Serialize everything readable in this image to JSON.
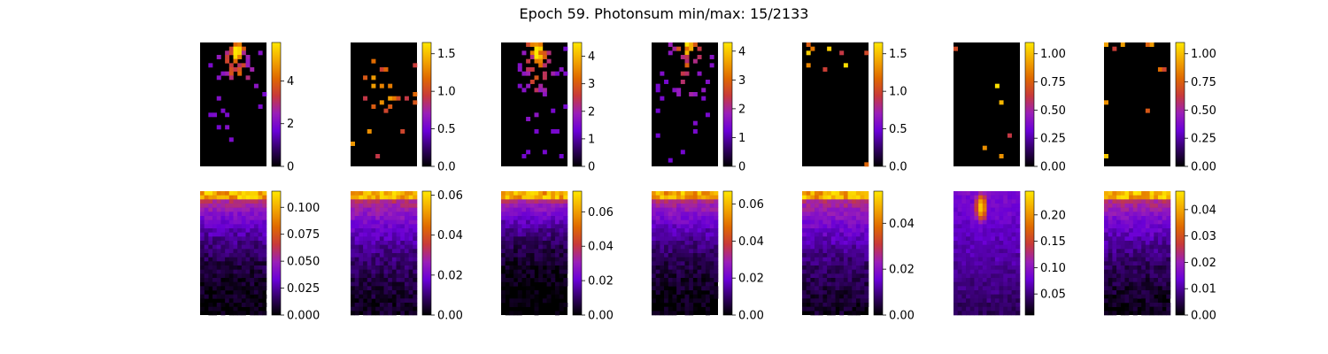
{
  "figure": {
    "title": "Epoch 59. Photonsum min/max: 15/2133"
  },
  "colormap": {
    "name": "gnuplot",
    "stops": [
      "#000000",
      "#330066",
      "#6a00d6",
      "#9a1fb8",
      "#c83a3a",
      "#e06a00",
      "#f3a800",
      "#ffe800"
    ]
  },
  "chart_data": [
    {
      "type": "heatmap",
      "row": "top",
      "col": 1,
      "grid": [
        16,
        30
      ],
      "ylim": [
        0,
        5.8
      ],
      "ticks": [
        "0",
        "2",
        "4"
      ],
      "tick_values": [
        0,
        2,
        4
      ],
      "hotspot": {
        "x": 0.55,
        "y": 0.06,
        "value": 5.8
      },
      "pattern": "photon-hits-spread"
    },
    {
      "type": "heatmap",
      "row": "top",
      "col": 2,
      "grid": [
        16,
        30
      ],
      "ylim": [
        0,
        1.65
      ],
      "ticks": [
        "0.0",
        "0.5",
        "1.0",
        "1.5"
      ],
      "tick_values": [
        0,
        0.5,
        1.0,
        1.5
      ],
      "pattern": "sparse-hits"
    },
    {
      "type": "heatmap",
      "row": "top",
      "col": 3,
      "grid": [
        16,
        30
      ],
      "ylim": [
        0,
        4.5
      ],
      "ticks": [
        "0",
        "1",
        "2",
        "3",
        "4"
      ],
      "tick_values": [
        0,
        1,
        2,
        3,
        4
      ],
      "hotspot": {
        "x": 0.55,
        "y": 0.08,
        "value": 4.5
      },
      "pattern": "photon-hits-spread"
    },
    {
      "type": "heatmap",
      "row": "top",
      "col": 4,
      "grid": [
        16,
        30
      ],
      "ylim": [
        0,
        4.3
      ],
      "ticks": [
        "0",
        "1",
        "2",
        "3",
        "4"
      ],
      "tick_values": [
        0,
        1,
        2,
        3,
        4
      ],
      "hotspot": {
        "x": 0.55,
        "y": 0.0,
        "value": 4.3
      },
      "pattern": "photon-hits-spread"
    },
    {
      "type": "heatmap",
      "row": "top",
      "col": 5,
      "grid": [
        16,
        30
      ],
      "ylim": [
        0,
        1.65
      ],
      "ticks": [
        "0.0",
        "0.5",
        "1.0",
        "1.5"
      ],
      "tick_values": [
        0,
        0.5,
        1.0,
        1.5
      ],
      "pattern": "sparse-top"
    },
    {
      "type": "heatmap",
      "row": "top",
      "col": 6,
      "grid": [
        16,
        30
      ],
      "ylim": [
        0,
        1.1
      ],
      "ticks": [
        "0.00",
        "0.25",
        "0.50",
        "0.75",
        "1.00"
      ],
      "tick_values": [
        0,
        0.25,
        0.5,
        0.75,
        1.0
      ],
      "pattern": "very-sparse"
    },
    {
      "type": "heatmap",
      "row": "top",
      "col": 7,
      "grid": [
        16,
        30
      ],
      "ylim": [
        0,
        1.1
      ],
      "ticks": [
        "0.00",
        "0.25",
        "0.50",
        "0.75",
        "1.00"
      ],
      "tick_values": [
        0,
        0.25,
        0.5,
        0.75,
        1.0
      ],
      "pattern": "sparse-top"
    },
    {
      "type": "heatmap",
      "row": "bottom",
      "col": 1,
      "grid": [
        16,
        30
      ],
      "ylim": [
        0,
        0.115
      ],
      "ticks": [
        "0.000",
        "0.025",
        "0.050",
        "0.075",
        "0.100"
      ],
      "tick_values": [
        0,
        0.025,
        0.05,
        0.075,
        0.1
      ],
      "pattern": "gradient-top",
      "falloff": 0.45
    },
    {
      "type": "heatmap",
      "row": "bottom",
      "col": 2,
      "grid": [
        16,
        30
      ],
      "ylim": [
        0,
        0.062
      ],
      "ticks": [
        "0.00",
        "0.02",
        "0.04",
        "0.06"
      ],
      "tick_values": [
        0,
        0.02,
        0.04,
        0.06
      ],
      "pattern": "gradient-top",
      "falloff": 0.65
    },
    {
      "type": "heatmap",
      "row": "bottom",
      "col": 3,
      "grid": [
        16,
        30
      ],
      "ylim": [
        0,
        0.072
      ],
      "ticks": [
        "0.00",
        "0.02",
        "0.04",
        "0.06"
      ],
      "tick_values": [
        0,
        0.02,
        0.04,
        0.06
      ],
      "pattern": "gradient-top",
      "falloff": 0.25
    },
    {
      "type": "heatmap",
      "row": "bottom",
      "col": 4,
      "grid": [
        16,
        30
      ],
      "ylim": [
        0,
        0.067
      ],
      "ticks": [
        "0.00",
        "0.02",
        "0.04",
        "0.06"
      ],
      "tick_values": [
        0,
        0.02,
        0.04,
        0.06
      ],
      "pattern": "gradient-top",
      "falloff": 0.45
    },
    {
      "type": "heatmap",
      "row": "bottom",
      "col": 5,
      "grid": [
        16,
        30
      ],
      "ylim": [
        0,
        0.054
      ],
      "ticks": [
        "0.00",
        "0.02",
        "0.04"
      ],
      "tick_values": [
        0,
        0.02,
        0.04
      ],
      "pattern": "gradient-top",
      "falloff": 0.7
    },
    {
      "type": "heatmap",
      "row": "bottom",
      "col": 6,
      "grid": [
        16,
        30
      ],
      "ylim": [
        0.01,
        0.245
      ],
      "ticks": [
        "0.05",
        "0.10",
        "0.15",
        "0.20"
      ],
      "tick_values": [
        0.05,
        0.1,
        0.15,
        0.2
      ],
      "pattern": "blob-top",
      "falloff": 1.0
    },
    {
      "type": "heatmap",
      "row": "bottom",
      "col": 7,
      "grid": [
        16,
        30
      ],
      "ylim": [
        0,
        0.047
      ],
      "ticks": [
        "0.00",
        "0.01",
        "0.02",
        "0.03",
        "0.04"
      ],
      "tick_values": [
        0,
        0.01,
        0.02,
        0.03,
        0.04
      ],
      "pattern": "gradient-top",
      "falloff": 0.6
    }
  ]
}
